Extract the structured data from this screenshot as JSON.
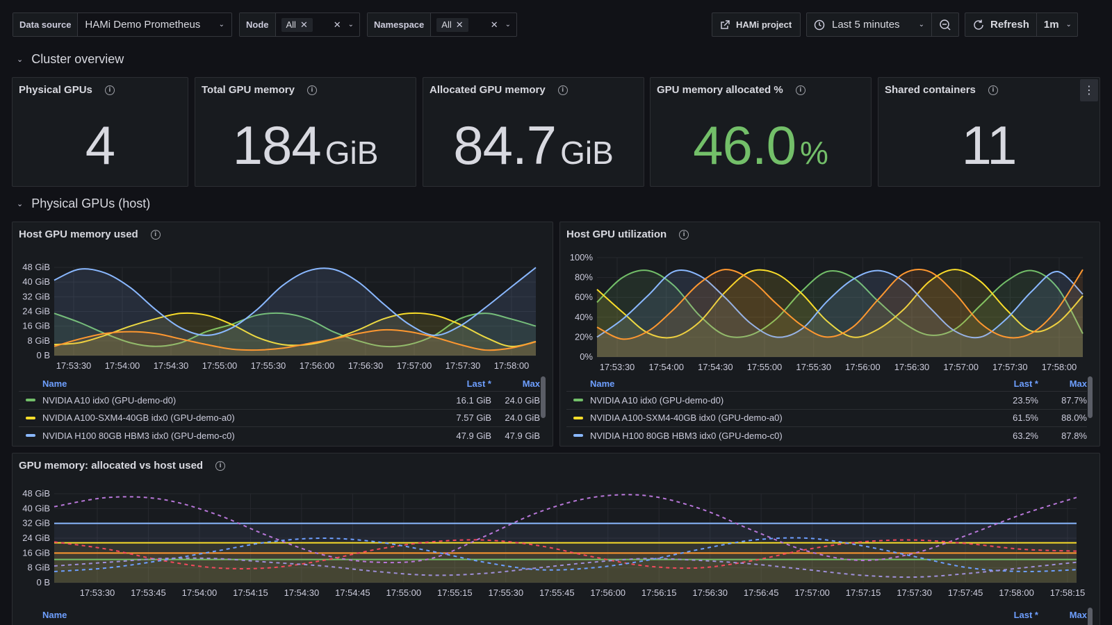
{
  "toolbar": {
    "datasource_label": "Data source",
    "datasource_value": "HAMi Demo Prometheus",
    "node_label": "Node",
    "node_chip": "All",
    "namespace_label": "Namespace",
    "namespace_chip": "All",
    "project_label": "HAMi project",
    "time_range": "Last 5 minutes",
    "refresh_label": "Refresh",
    "refresh_interval": "1m"
  },
  "rows": {
    "cluster_overview": "Cluster overview",
    "physical_gpus_host": "Physical GPUs (host)"
  },
  "stats": [
    {
      "title": "Physical GPUs",
      "value": "4",
      "unit": ""
    },
    {
      "title": "Total GPU memory",
      "value": "184",
      "unit": "GiB"
    },
    {
      "title": "Allocated GPU memory",
      "value": "84.7",
      "unit": "GiB"
    },
    {
      "title": "GPU memory allocated %",
      "value": "46.0",
      "unit": "%"
    },
    {
      "title": "Shared containers",
      "value": "11",
      "unit": ""
    }
  ],
  "colors": {
    "green": "#73bf69",
    "yellow": "#fade2a",
    "blue": "#8ab8ff",
    "orange": "#ff9830",
    "red": "#f2495c",
    "purple": "#b877d9",
    "legend_header": "#6e9fff"
  },
  "panels": {
    "mem_used": {
      "title": "Host GPU memory used",
      "legend_name": "Name",
      "legend_last": "Last *",
      "legend_max": "Max",
      "legend_rows": [
        {
          "name": "NVIDIA A10 idx0 (GPU-demo-d0)",
          "last": "16.1 GiB",
          "max": "24.0 GiB",
          "color": "#73bf69"
        },
        {
          "name": "NVIDIA A100-SXM4-40GB idx0 (GPU-demo-a0)",
          "last": "7.57 GiB",
          "max": "24.0 GiB",
          "color": "#fade2a"
        },
        {
          "name": "NVIDIA H100 80GB HBM3 idx0 (GPU-demo-c0)",
          "last": "47.9 GiB",
          "max": "47.9 GiB",
          "color": "#8ab8ff"
        }
      ]
    },
    "util": {
      "title": "Host GPU utilization",
      "legend_name": "Name",
      "legend_last": "Last *",
      "legend_max": "Max",
      "legend_rows": [
        {
          "name": "NVIDIA A10 idx0 (GPU-demo-d0)",
          "last": "23.5%",
          "max": "87.7%",
          "color": "#73bf69"
        },
        {
          "name": "NVIDIA A100-SXM4-40GB idx0 (GPU-demo-a0)",
          "last": "61.5%",
          "max": "88.0%",
          "color": "#fade2a"
        },
        {
          "name": "NVIDIA H100 80GB HBM3 idx0 (GPU-demo-c0)",
          "last": "63.2%",
          "max": "87.8%",
          "color": "#8ab8ff"
        }
      ]
    },
    "alloc_vs_used": {
      "title": "GPU memory: allocated vs host used",
      "legend_name": "Name",
      "legend_last": "Last *",
      "legend_max": "Max"
    }
  },
  "chart_data": [
    {
      "type": "area",
      "id": "mem_used",
      "ylim": [
        0,
        48
      ],
      "yticks": [
        "0 B",
        "8 GiB",
        "16 GiB",
        "24 GiB",
        "32 GiB",
        "40 GiB",
        "48 GiB"
      ],
      "xticks": [
        "17:53:30",
        "17:54:00",
        "17:54:30",
        "17:55:00",
        "17:55:30",
        "17:56:00",
        "17:56:30",
        "17:57:00",
        "17:57:30",
        "17:58:00"
      ],
      "series": [
        {
          "color": "#73bf69",
          "values": [
            23,
            18,
            12,
            7,
            5,
            7,
            13,
            17,
            22,
            23,
            20,
            13,
            8,
            5,
            6,
            11,
            20,
            23,
            20,
            16
          ]
        },
        {
          "color": "#fade2a",
          "values": [
            6,
            7,
            11,
            16,
            20,
            23,
            22,
            17,
            10,
            6,
            6,
            9,
            14,
            20,
            23,
            22,
            17,
            10,
            5,
            7.6
          ]
        },
        {
          "color": "#8ab8ff",
          "values": [
            41,
            47,
            45,
            37,
            25,
            15,
            11,
            15,
            25,
            38,
            46,
            47,
            40,
            28,
            17,
            11,
            16,
            26,
            37,
            47.9
          ]
        },
        {
          "color": "#ff9830",
          "values": [
            5,
            9,
            12,
            13,
            12,
            9,
            6,
            3.5,
            3,
            4,
            6.5,
            9,
            12,
            14,
            13,
            10,
            6,
            3,
            4,
            7.5
          ]
        }
      ]
    },
    {
      "type": "area",
      "id": "util",
      "ylim": [
        0,
        100
      ],
      "yticks": [
        "0%",
        "20%",
        "40%",
        "60%",
        "80%",
        "100%"
      ],
      "xticks": [
        "17:53:30",
        "17:54:00",
        "17:54:30",
        "17:55:00",
        "17:55:30",
        "17:56:00",
        "17:56:30",
        "17:57:00",
        "17:57:30",
        "17:58:00"
      ],
      "series": [
        {
          "color": "#73bf69",
          "values": [
            55,
            80,
            87,
            72,
            42,
            22,
            22,
            38,
            66,
            86,
            80,
            56,
            34,
            22,
            28,
            52,
            76,
            87,
            70,
            23.5
          ]
        },
        {
          "color": "#fade2a",
          "values": [
            68,
            45,
            24,
            20,
            35,
            65,
            86,
            84,
            64,
            36,
            20,
            28,
            48,
            76,
            88,
            76,
            48,
            26,
            34,
            61.5
          ]
        },
        {
          "color": "#8ab8ff",
          "values": [
            20,
            38,
            62,
            86,
            82,
            60,
            34,
            20,
            28,
            56,
            78,
            87,
            76,
            50,
            26,
            20,
            38,
            66,
            86,
            63.2
          ]
        },
        {
          "color": "#ff9830",
          "values": [
            30,
            18,
            26,
            48,
            74,
            88,
            78,
            54,
            32,
            20,
            30,
            58,
            84,
            86,
            64,
            34,
            20,
            24,
            48,
            88
          ]
        }
      ]
    },
    {
      "type": "line",
      "id": "alloc_vs_used",
      "ylim": [
        0,
        48
      ],
      "yticks": [
        "0 B",
        "8 GiB",
        "16 GiB",
        "24 GiB",
        "32 GiB",
        "40 GiB",
        "48 GiB"
      ],
      "xticks": [
        "17:53:30",
        "17:53:45",
        "17:54:00",
        "17:54:15",
        "17:54:30",
        "17:54:45",
        "17:55:00",
        "17:55:15",
        "17:55:30",
        "17:55:45",
        "17:56:00",
        "17:56:15",
        "17:56:30",
        "17:56:45",
        "17:57:00",
        "17:57:15",
        "17:57:30",
        "17:57:45",
        "17:58:00",
        "17:58:15"
      ],
      "solid": [
        {
          "color": "#8ab8ff",
          "value": 32
        },
        {
          "color": "#fade2a",
          "value": 21.5
        },
        {
          "color": "#ff9830",
          "value": 16
        },
        {
          "color": "#73bf69",
          "value": 12.5
        }
      ],
      "dashed": [
        {
          "color": "#b877d9",
          "values": [
            41,
            46,
            45,
            37,
            25,
            15,
            11,
            13,
            25,
            38,
            46,
            47,
            40,
            28,
            17,
            12,
            16,
            26,
            37,
            46
          ]
        },
        {
          "color": "#f2495c",
          "values": [
            22,
            18,
            12,
            8,
            8,
            12,
            18,
            22,
            23,
            20,
            14,
            9,
            8,
            12,
            18,
            22,
            23,
            21,
            18,
            17
          ]
        },
        {
          "color": "#6e9fff",
          "values": [
            6,
            8,
            12,
            17,
            22,
            24,
            22,
            17,
            11,
            7,
            8,
            12,
            18,
            23,
            24,
            20,
            14,
            8,
            6,
            7
          ]
        },
        {
          "color": "#9e8fd9",
          "values": [
            9,
            11,
            13,
            13,
            11,
            9,
            6,
            4,
            5,
            8,
            11,
            13,
            12,
            10,
            7,
            4,
            3,
            5,
            8,
            11
          ]
        }
      ]
    }
  ]
}
